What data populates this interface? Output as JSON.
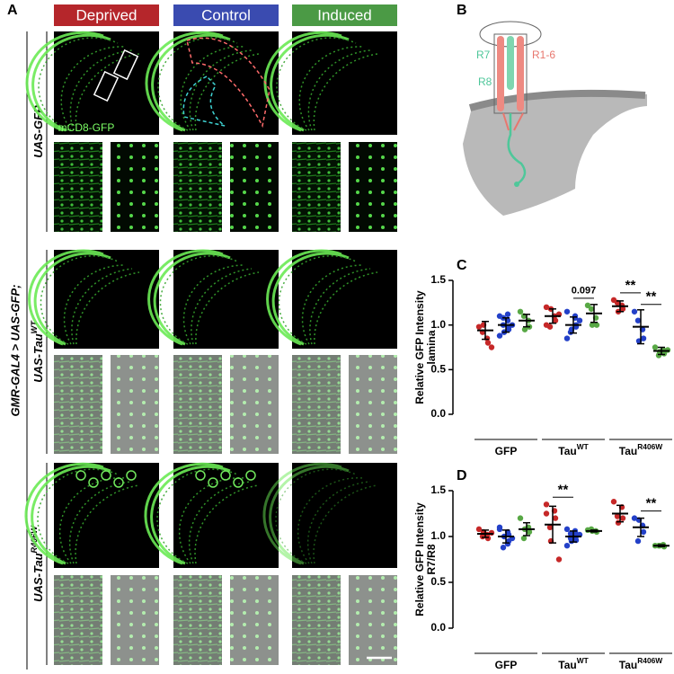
{
  "panel_a": {
    "letter": "A",
    "conditions": [
      {
        "label": "Deprived",
        "color": "#b5262b"
      },
      {
        "label": "Control",
        "color": "#3a4bb0"
      },
      {
        "label": "Induced",
        "color": "#4b9a45"
      }
    ],
    "driver": "GMR-GAL4 > UAS-GFP;",
    "genotypes": [
      {
        "base": "UAS-GFP"
      },
      {
        "base": "UAS-Tau",
        "sup": "WT"
      },
      {
        "base": "UAS-Tau",
        "sup": "R406W"
      }
    ],
    "marker": "mCD8-GFP"
  },
  "panel_b": {
    "letter": "B",
    "labels": {
      "r7": "R7",
      "r8": "R8",
      "r16": "R1-6"
    }
  },
  "chart_data": [
    {
      "type": "dot",
      "label": "C",
      "ylabel": [
        "Relative GFP Intensity",
        "lamina"
      ],
      "groups": [
        {
          "base": "GFP"
        },
        {
          "base": "Tau",
          "sup": "WT"
        },
        {
          "base": "Tau",
          "sup": "R406W"
        }
      ],
      "ylim": [
        0,
        1.5
      ],
      "yticks": [
        {
          "value": 0,
          "label": "0.0"
        },
        0.5,
        {
          "value": 1,
          "label": "1.0"
        },
        1.5
      ],
      "series": [
        {
          "color": "#c62828",
          "values": [
            0.94,
            1.1,
            1.21
          ],
          "errors": [
            0.1,
            0.08,
            0.06
          ],
          "points": [
            [
              0.98,
              0.85,
              0.8,
              0.92,
              1.0,
              0.75
            ],
            [
              1.2,
              1.1,
              1.05,
              0.98,
              1.18,
              1.12,
              1.0
            ],
            [
              1.28,
              1.22,
              1.18,
              1.25,
              1.15
            ]
          ]
        },
        {
          "color": "#2340c8",
          "values": [
            1.0,
            1.0,
            0.98
          ],
          "errors": [
            0.08,
            0.09,
            0.19
          ],
          "points": [
            [
              1.1,
              1.05,
              0.95,
              1.0,
              0.92,
              1.0,
              0.88,
              1.12,
              0.98,
              1.08
            ],
            [
              1.15,
              1.08,
              1.0,
              0.92,
              0.95,
              1.05,
              0.85,
              1.1,
              0.98
            ],
            [
              1.15,
              0.95,
              0.85,
              1.05,
              0.82
            ]
          ]
        },
        {
          "color": "#58a845",
          "values": [
            1.05,
            1.13,
            0.71
          ],
          "errors": [
            0.07,
            0.1,
            0.04
          ],
          "points": [
            [
              1.15,
              1.05,
              0.98,
              1.1,
              0.95
            ],
            [
              1.22,
              1.08,
              1.0,
              1.18,
              1.0
            ],
            [
              0.75,
              0.72,
              0.68,
              0.66,
              0.7,
              0.72
            ]
          ]
        }
      ],
      "annotations": [
        {
          "text": "0.097",
          "group": 1,
          "from": 1,
          "to": 2
        },
        {
          "text": "**",
          "group": 2,
          "from": 0,
          "to": 1
        },
        {
          "text": "**",
          "group": 2,
          "from": 1,
          "to": 2
        }
      ]
    },
    {
      "type": "dot",
      "label": "D",
      "ylabel": [
        "Relative GFP Intensity",
        "R7/R8"
      ],
      "groups": [
        {
          "base": "GFP"
        },
        {
          "base": "Tau",
          "sup": "WT"
        },
        {
          "base": "Tau",
          "sup": "R406W"
        }
      ],
      "ylim": [
        0,
        1.5
      ],
      "yticks": [
        {
          "value": 0,
          "label": "0.0"
        },
        0.5,
        {
          "value": 1,
          "label": "1.0"
        },
        1.5
      ],
      "series": [
        {
          "color": "#c62828",
          "values": [
            1.03,
            1.13,
            1.25
          ],
          "errors": [
            0.04,
            0.2,
            0.09
          ],
          "points": [
            [
              1.08,
              1.02,
              0.98,
              1.0,
              1.05,
              1.04
            ],
            [
              1.35,
              1.28,
              1.2,
              1.1,
              0.95,
              0.75,
              1.25
            ],
            [
              1.38,
              1.32,
              1.2,
              1.22,
              1.15
            ]
          ]
        },
        {
          "color": "#2340c8",
          "values": [
            1.0,
            1.0,
            1.1
          ],
          "errors": [
            0.07,
            0.06,
            0.1
          ],
          "points": [
            [
              1.1,
              1.05,
              0.95,
              0.88,
              1.0,
              0.98,
              1.08,
              0.92,
              1.02
            ],
            [
              1.08,
              1.05,
              1.0,
              0.98,
              0.95,
              1.02,
              0.9,
              1.06,
              0.96,
              1.03
            ],
            [
              1.2,
              1.12,
              1.05,
              0.95,
              1.18
            ]
          ]
        },
        {
          "color": "#58a845",
          "values": [
            1.08,
            1.06,
            0.9
          ],
          "errors": [
            0.07,
            0.01,
            0.01
          ],
          "points": [
            [
              1.2,
              1.1,
              1.05,
              0.98,
              1.08
            ],
            [
              1.07,
              1.06,
              1.05,
              1.08,
              1.06
            ],
            [
              0.9,
              0.91,
              0.89,
              0.9,
              0.9
            ]
          ]
        }
      ],
      "annotations": [
        {
          "text": "**",
          "group": 1,
          "from": 0,
          "to": 1
        },
        {
          "text": "**",
          "group": 2,
          "from": 1,
          "to": 2
        }
      ]
    }
  ]
}
